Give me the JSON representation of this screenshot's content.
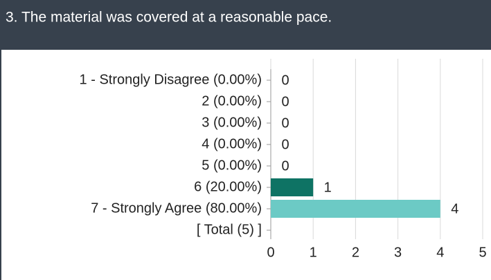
{
  "chart_data": {
    "type": "bar",
    "orientation": "horizontal",
    "title": "3. The material was covered at a reasonable pace.",
    "categories": [
      "1 - Strongly Disagree (0.00%)",
      "2 (0.00%)",
      "3 (0.00%)",
      "4 (0.00%)",
      "5 (0.00%)",
      "6 (20.00%)",
      "7 - Strongly Agree (80.00%)",
      "[ Total (5) ]"
    ],
    "values": [
      0,
      0,
      0,
      0,
      0,
      1,
      4,
      null
    ],
    "colors": [
      "#0e7364",
      "#0e7364",
      "#0e7364",
      "#0e7364",
      "#0e7364",
      "#0e7364",
      "#6ccac5",
      "#6ccac5"
    ],
    "xlim": [
      0,
      5
    ],
    "xticks": [
      0,
      1,
      2,
      3,
      4,
      5
    ],
    "grid": true
  }
}
